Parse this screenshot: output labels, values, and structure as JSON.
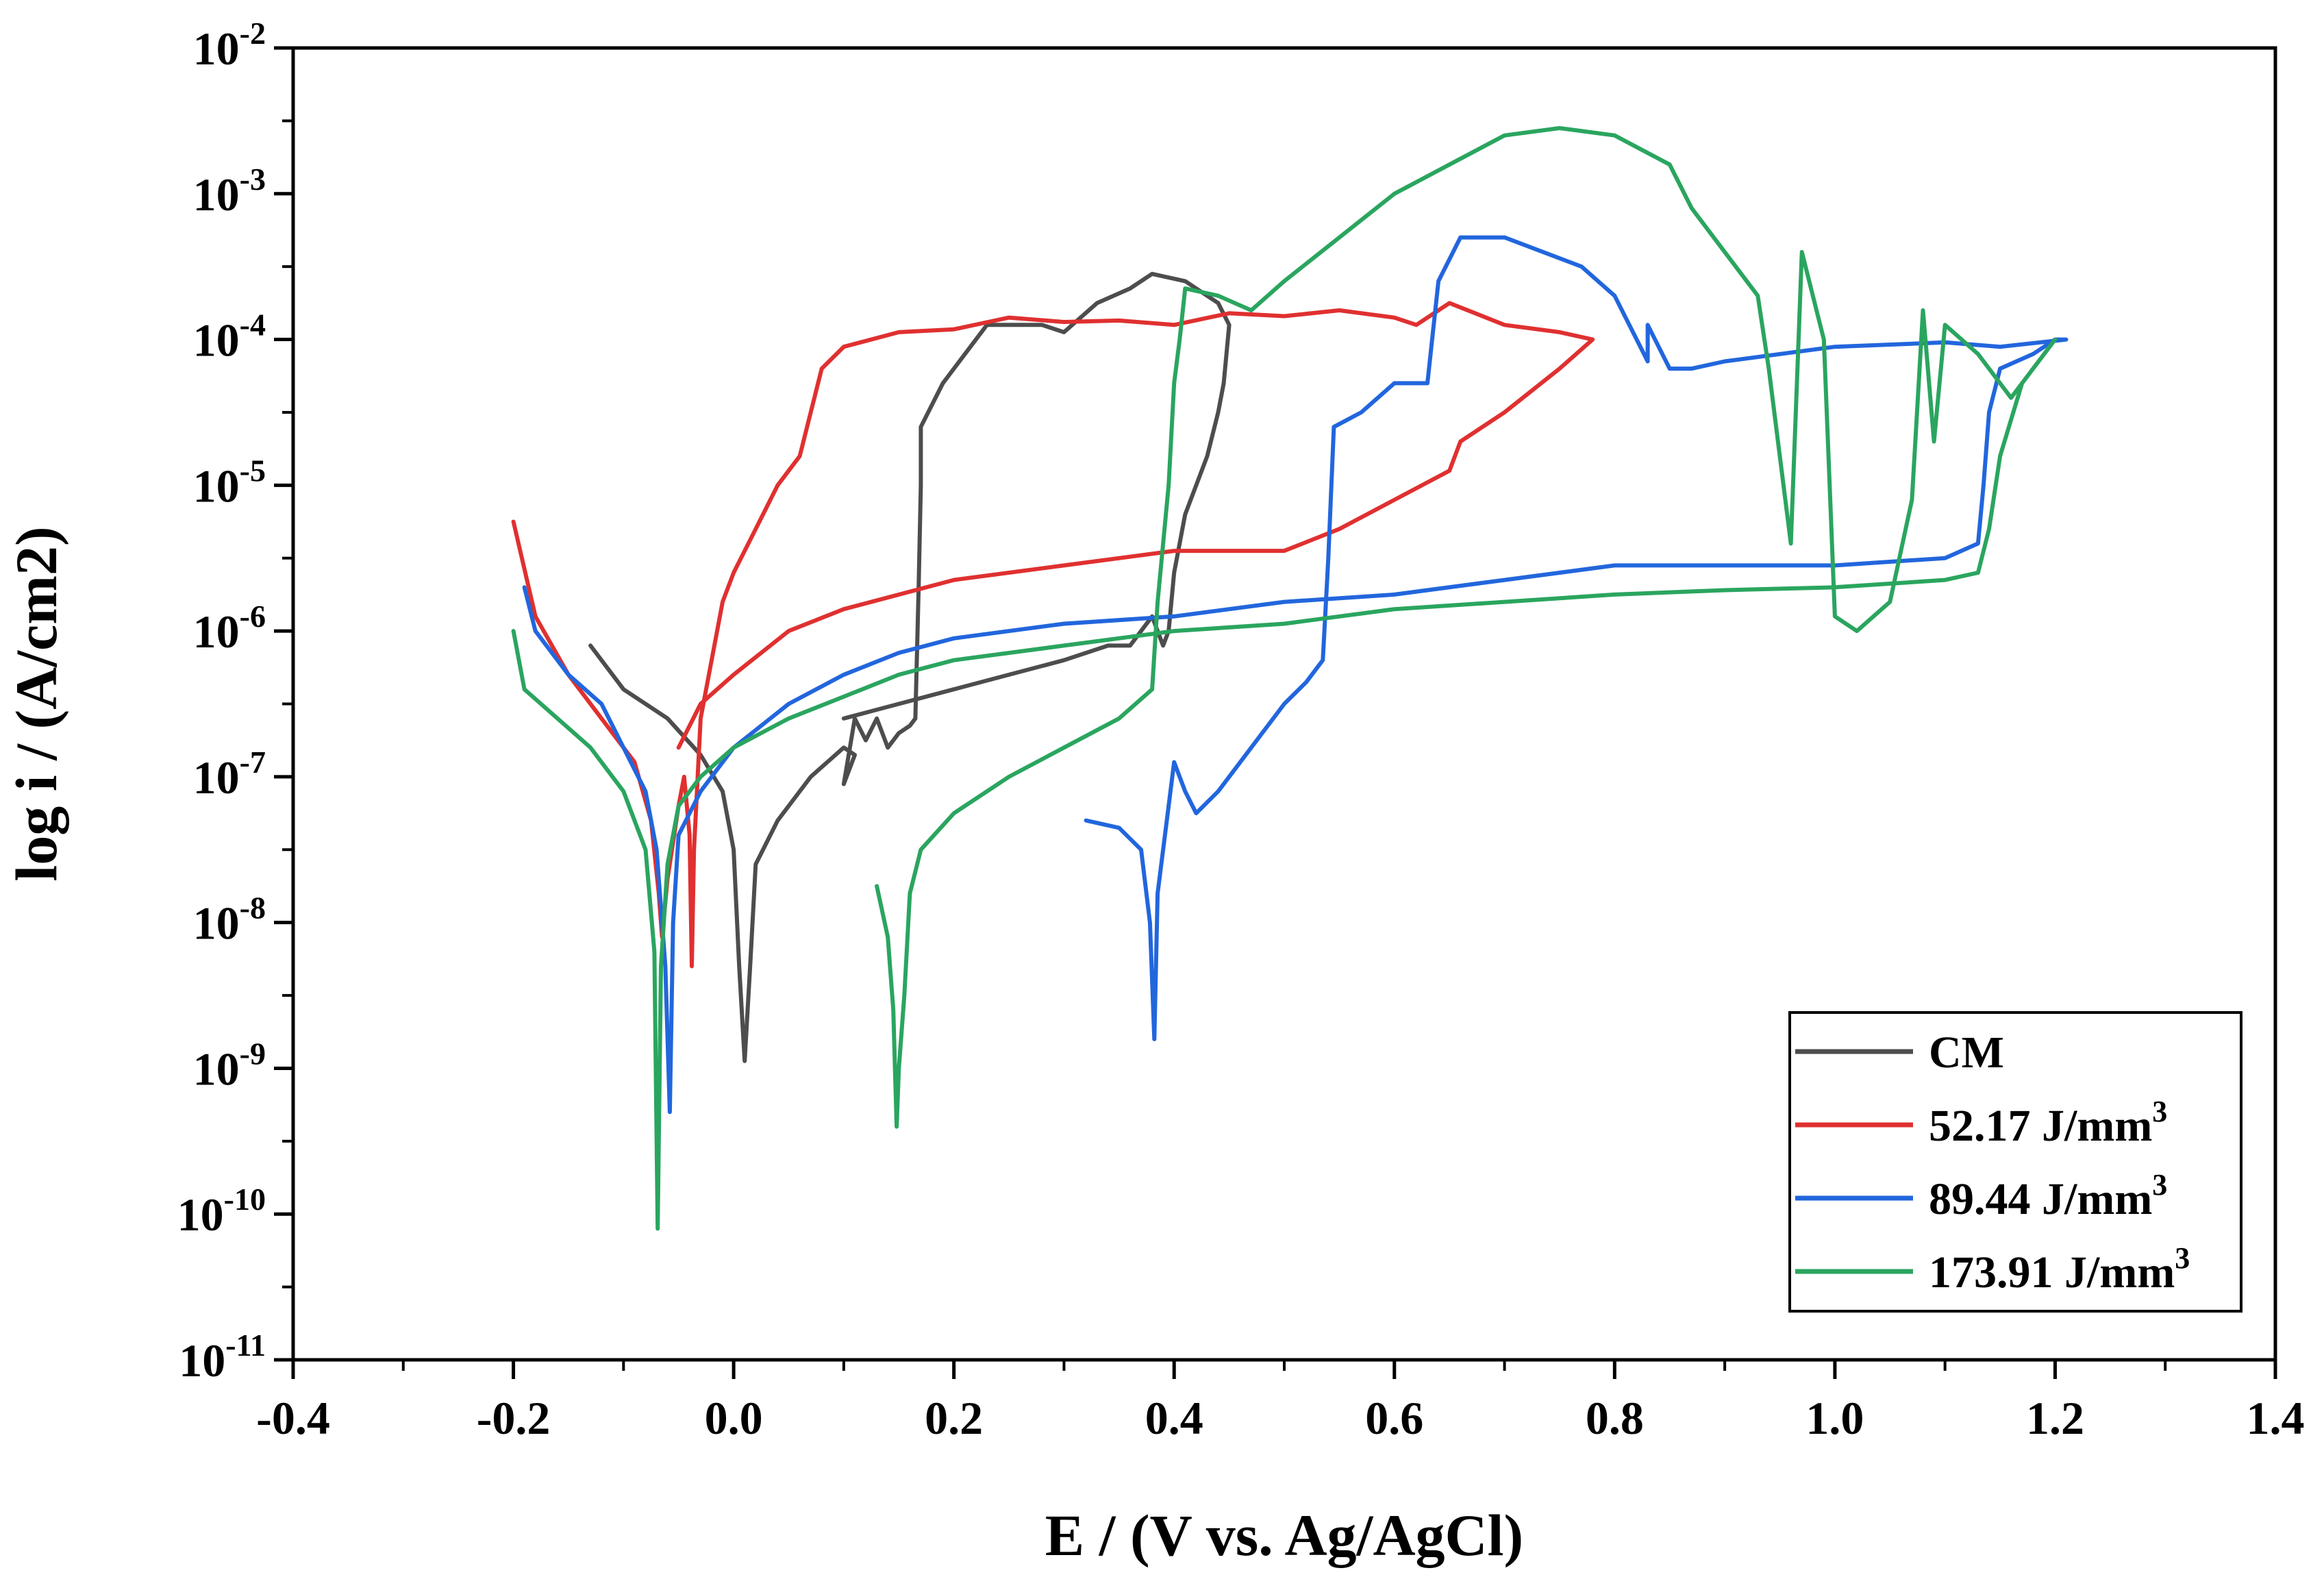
{
  "chart_data": {
    "type": "line",
    "title": "",
    "xlabel": "E / (V vs. Ag/AgCl)",
    "ylabel": "log i / (A/cm2)",
    "xlim": [
      -0.4,
      1.4
    ],
    "ylim_log10": [
      -11,
      -2
    ],
    "y_scale": "log",
    "x_ticks": [
      {
        "value": -0.4,
        "label": "-0.4"
      },
      {
        "value": -0.2,
        "label": "-0.2"
      },
      {
        "value": 0.0,
        "label": "0.0"
      },
      {
        "value": 0.2,
        "label": "0.2"
      },
      {
        "value": 0.4,
        "label": "0.4"
      },
      {
        "value": 0.6,
        "label": "0.6"
      },
      {
        "value": 0.8,
        "label": "0.8"
      },
      {
        "value": 1.0,
        "label": "1.0"
      },
      {
        "value": 1.2,
        "label": "1.2"
      },
      {
        "value": 1.4,
        "label": "1.4"
      }
    ],
    "y_ticks": [
      {
        "exp": -2,
        "base": "10",
        "sup": "-2"
      },
      {
        "exp": -3,
        "base": "10",
        "sup": "-3"
      },
      {
        "exp": -4,
        "base": "10",
        "sup": "-4"
      },
      {
        "exp": -5,
        "base": "10",
        "sup": "-5"
      },
      {
        "exp": -6,
        "base": "10",
        "sup": "-6"
      },
      {
        "exp": -7,
        "base": "10",
        "sup": "-7"
      },
      {
        "exp": -8,
        "base": "10",
        "sup": "-8"
      },
      {
        "exp": -9,
        "base": "10",
        "sup": "-9"
      },
      {
        "exp": -10,
        "base": "10",
        "sup": "-10"
      },
      {
        "exp": -11,
        "base": "10",
        "sup": "-11"
      }
    ],
    "grid": false,
    "legend_position": "bottom-right",
    "series": [
      {
        "name": "CM",
        "label_main": "CM",
        "label_sup": "",
        "color": "#4d4d4d",
        "points": [
          [
            -0.13,
            -6.1
          ],
          [
            -0.1,
            -6.4
          ],
          [
            -0.06,
            -6.6
          ],
          [
            -0.03,
            -6.85
          ],
          [
            -0.01,
            -7.1
          ],
          [
            0.0,
            -7.5
          ],
          [
            0.005,
            -8.3
          ],
          [
            0.01,
            -8.95
          ],
          [
            0.015,
            -8.3
          ],
          [
            0.02,
            -7.6
          ],
          [
            0.04,
            -7.3
          ],
          [
            0.07,
            -7.0
          ],
          [
            0.1,
            -6.8
          ],
          [
            0.11,
            -6.85
          ],
          [
            0.1,
            -7.05
          ],
          [
            0.11,
            -6.6
          ],
          [
            0.12,
            -6.75
          ],
          [
            0.13,
            -6.6
          ],
          [
            0.14,
            -6.8
          ],
          [
            0.15,
            -6.7
          ],
          [
            0.16,
            -6.65
          ],
          [
            0.165,
            -6.6
          ],
          [
            0.168,
            -5.7
          ],
          [
            0.17,
            -5.0
          ],
          [
            0.17,
            -4.6
          ],
          [
            0.19,
            -4.3
          ],
          [
            0.23,
            -3.9
          ],
          [
            0.28,
            -3.9
          ],
          [
            0.3,
            -3.95
          ],
          [
            0.33,
            -3.75
          ],
          [
            0.36,
            -3.65
          ],
          [
            0.38,
            -3.55
          ],
          [
            0.41,
            -3.6
          ],
          [
            0.44,
            -3.75
          ],
          [
            0.45,
            -3.9
          ],
          [
            0.445,
            -4.3
          ],
          [
            0.44,
            -4.5
          ],
          [
            0.43,
            -4.8
          ],
          [
            0.41,
            -5.2
          ],
          [
            0.4,
            -5.6
          ],
          [
            0.395,
            -6.0
          ],
          [
            0.39,
            -6.1
          ],
          [
            0.38,
            -5.9
          ],
          [
            0.37,
            -6.0
          ],
          [
            0.36,
            -6.1
          ],
          [
            0.34,
            -6.1
          ],
          [
            0.3,
            -6.2
          ],
          [
            0.25,
            -6.3
          ],
          [
            0.2,
            -6.4
          ],
          [
            0.15,
            -6.5
          ],
          [
            0.1,
            -6.6
          ]
        ]
      },
      {
        "name": "52.17 J/mm3",
        "label_main": "52.17 J/mm",
        "label_sup": "3",
        "color": "#e03030",
        "points": [
          [
            -0.2,
            -5.25
          ],
          [
            -0.18,
            -5.9
          ],
          [
            -0.15,
            -6.3
          ],
          [
            -0.12,
            -6.6
          ],
          [
            -0.09,
            -6.9
          ],
          [
            -0.075,
            -7.3
          ],
          [
            -0.068,
            -7.8
          ],
          [
            -0.065,
            -8.1
          ],
          [
            -0.06,
            -7.7
          ],
          [
            -0.05,
            -7.2
          ],
          [
            -0.045,
            -7.0
          ],
          [
            -0.04,
            -7.4
          ],
          [
            -0.038,
            -8.3
          ],
          [
            -0.036,
            -7.5
          ],
          [
            -0.03,
            -6.6
          ],
          [
            -0.01,
            -5.8
          ],
          [
            0.0,
            -5.6
          ],
          [
            0.02,
            -5.3
          ],
          [
            0.04,
            -5.0
          ],
          [
            0.06,
            -4.8
          ],
          [
            0.08,
            -4.2
          ],
          [
            0.1,
            -4.05
          ],
          [
            0.15,
            -3.95
          ],
          [
            0.2,
            -3.93
          ],
          [
            0.25,
            -3.85
          ],
          [
            0.3,
            -3.88
          ],
          [
            0.35,
            -3.87
          ],
          [
            0.4,
            -3.9
          ],
          [
            0.45,
            -3.82
          ],
          [
            0.5,
            -3.84
          ],
          [
            0.55,
            -3.8
          ],
          [
            0.6,
            -3.85
          ],
          [
            0.62,
            -3.9
          ],
          [
            0.65,
            -3.75
          ],
          [
            0.7,
            -3.9
          ],
          [
            0.75,
            -3.95
          ],
          [
            0.78,
            -4.0
          ],
          [
            0.75,
            -4.2
          ],
          [
            0.7,
            -4.5
          ],
          [
            0.66,
            -4.7
          ],
          [
            0.65,
            -4.9
          ],
          [
            0.6,
            -5.1
          ],
          [
            0.55,
            -5.3
          ],
          [
            0.5,
            -5.45
          ],
          [
            0.45,
            -5.45
          ],
          [
            0.4,
            -5.45
          ],
          [
            0.3,
            -5.55
          ],
          [
            0.2,
            -5.65
          ],
          [
            0.1,
            -5.85
          ],
          [
            0.05,
            -6.0
          ],
          [
            0.0,
            -6.3
          ],
          [
            -0.03,
            -6.5
          ],
          [
            -0.05,
            -6.8
          ]
        ]
      },
      {
        "name": "89.44 J/mm3",
        "label_main": "89.44 J/mm",
        "label_sup": "3",
        "color": "#2266dd",
        "points": [
          [
            -0.19,
            -5.7
          ],
          [
            -0.18,
            -6.0
          ],
          [
            -0.15,
            -6.3
          ],
          [
            -0.12,
            -6.5
          ],
          [
            -0.1,
            -6.8
          ],
          [
            -0.08,
            -7.1
          ],
          [
            -0.07,
            -7.5
          ],
          [
            -0.062,
            -8.3
          ],
          [
            -0.058,
            -9.3
          ],
          [
            -0.055,
            -8.0
          ],
          [
            -0.05,
            -7.4
          ],
          [
            -0.03,
            -7.1
          ],
          [
            0.0,
            -6.8
          ],
          [
            0.05,
            -6.5
          ],
          [
            0.1,
            -6.3
          ],
          [
            0.15,
            -6.15
          ],
          [
            0.2,
            -6.05
          ],
          [
            0.3,
            -5.95
          ],
          [
            0.4,
            -5.9
          ],
          [
            0.5,
            -5.8
          ],
          [
            0.6,
            -5.75
          ],
          [
            0.7,
            -5.65
          ],
          [
            0.8,
            -5.55
          ],
          [
            0.9,
            -5.55
          ],
          [
            1.0,
            -5.55
          ],
          [
            1.1,
            -5.5
          ],
          [
            1.13,
            -5.4
          ],
          [
            1.135,
            -5.0
          ],
          [
            1.14,
            -4.5
          ],
          [
            1.15,
            -4.2
          ],
          [
            1.18,
            -4.1
          ],
          [
            1.2,
            -4.0
          ],
          [
            1.21,
            -4.0
          ],
          [
            1.15,
            -4.05
          ],
          [
            1.1,
            -4.02
          ],
          [
            1.0,
            -4.05
          ],
          [
            0.9,
            -4.15
          ],
          [
            0.87,
            -4.2
          ],
          [
            0.85,
            -4.2
          ],
          [
            0.83,
            -3.9
          ],
          [
            0.83,
            -4.15
          ],
          [
            0.8,
            -3.7
          ],
          [
            0.77,
            -3.5
          ],
          [
            0.7,
            -3.3
          ],
          [
            0.66,
            -3.3
          ],
          [
            0.64,
            -3.6
          ],
          [
            0.63,
            -4.3
          ],
          [
            0.6,
            -4.3
          ],
          [
            0.57,
            -4.5
          ],
          [
            0.545,
            -4.6
          ],
          [
            0.54,
            -5.5
          ],
          [
            0.535,
            -6.2
          ],
          [
            0.52,
            -6.35
          ],
          [
            0.5,
            -6.5
          ],
          [
            0.46,
            -6.9
          ],
          [
            0.44,
            -7.1
          ],
          [
            0.42,
            -7.25
          ],
          [
            0.41,
            -7.1
          ],
          [
            0.4,
            -6.9
          ],
          [
            0.395,
            -7.2
          ],
          [
            0.385,
            -7.8
          ],
          [
            0.382,
            -8.8
          ],
          [
            0.378,
            -8.0
          ],
          [
            0.37,
            -7.5
          ],
          [
            0.35,
            -7.35
          ],
          [
            0.32,
            -7.3
          ]
        ]
      },
      {
        "name": "173.91 J/mm3",
        "label_main": "173.91 J/mm",
        "label_sup": "3",
        "color": "#2aa55f",
        "points": [
          [
            -0.2,
            -6.0
          ],
          [
            -0.19,
            -6.4
          ],
          [
            -0.16,
            -6.6
          ],
          [
            -0.13,
            -6.8
          ],
          [
            -0.1,
            -7.1
          ],
          [
            -0.08,
            -7.5
          ],
          [
            -0.072,
            -8.2
          ],
          [
            -0.069,
            -10.1
          ],
          [
            -0.066,
            -8.3
          ],
          [
            -0.06,
            -7.6
          ],
          [
            -0.05,
            -7.2
          ],
          [
            -0.03,
            -7.0
          ],
          [
            0.0,
            -6.8
          ],
          [
            0.05,
            -6.6
          ],
          [
            0.1,
            -6.45
          ],
          [
            0.15,
            -6.3
          ],
          [
            0.2,
            -6.2
          ],
          [
            0.3,
            -6.1
          ],
          [
            0.4,
            -6.0
          ],
          [
            0.5,
            -5.95
          ],
          [
            0.6,
            -5.85
          ],
          [
            0.7,
            -5.8
          ],
          [
            0.8,
            -5.75
          ],
          [
            0.9,
            -5.72
          ],
          [
            1.0,
            -5.7
          ],
          [
            1.1,
            -5.65
          ],
          [
            1.13,
            -5.6
          ],
          [
            1.14,
            -5.3
          ],
          [
            1.15,
            -4.8
          ],
          [
            1.17,
            -4.3
          ],
          [
            1.2,
            -4.0
          ],
          [
            1.19,
            -4.1
          ],
          [
            1.16,
            -4.4
          ],
          [
            1.13,
            -4.1
          ],
          [
            1.1,
            -3.9
          ],
          [
            1.09,
            -4.7
          ],
          [
            1.08,
            -3.8
          ],
          [
            1.07,
            -5.1
          ],
          [
            1.05,
            -5.8
          ],
          [
            1.02,
            -6.0
          ],
          [
            1.0,
            -5.9
          ],
          [
            0.99,
            -4.0
          ],
          [
            0.97,
            -3.4
          ],
          [
            0.96,
            -5.4
          ],
          [
            0.94,
            -4.2
          ],
          [
            0.93,
            -3.7
          ],
          [
            0.9,
            -3.4
          ],
          [
            0.87,
            -3.1
          ],
          [
            0.85,
            -2.8
          ],
          [
            0.8,
            -2.6
          ],
          [
            0.75,
            -2.55
          ],
          [
            0.7,
            -2.6
          ],
          [
            0.65,
            -2.8
          ],
          [
            0.6,
            -3.0
          ],
          [
            0.55,
            -3.3
          ],
          [
            0.5,
            -3.6
          ],
          [
            0.47,
            -3.8
          ],
          [
            0.44,
            -3.7
          ],
          [
            0.41,
            -3.65
          ],
          [
            0.405,
            -4.0
          ],
          [
            0.4,
            -4.3
          ],
          [
            0.395,
            -5.0
          ],
          [
            0.385,
            -5.8
          ],
          [
            0.38,
            -6.4
          ],
          [
            0.35,
            -6.6
          ],
          [
            0.3,
            -6.8
          ],
          [
            0.25,
            -7.0
          ],
          [
            0.2,
            -7.25
          ],
          [
            0.17,
            -7.5
          ],
          [
            0.16,
            -7.8
          ],
          [
            0.155,
            -8.5
          ],
          [
            0.15,
            -9.0
          ],
          [
            0.148,
            -9.4
          ],
          [
            0.145,
            -8.6
          ],
          [
            0.14,
            -8.1
          ],
          [
            0.13,
            -7.75
          ]
        ]
      }
    ]
  }
}
